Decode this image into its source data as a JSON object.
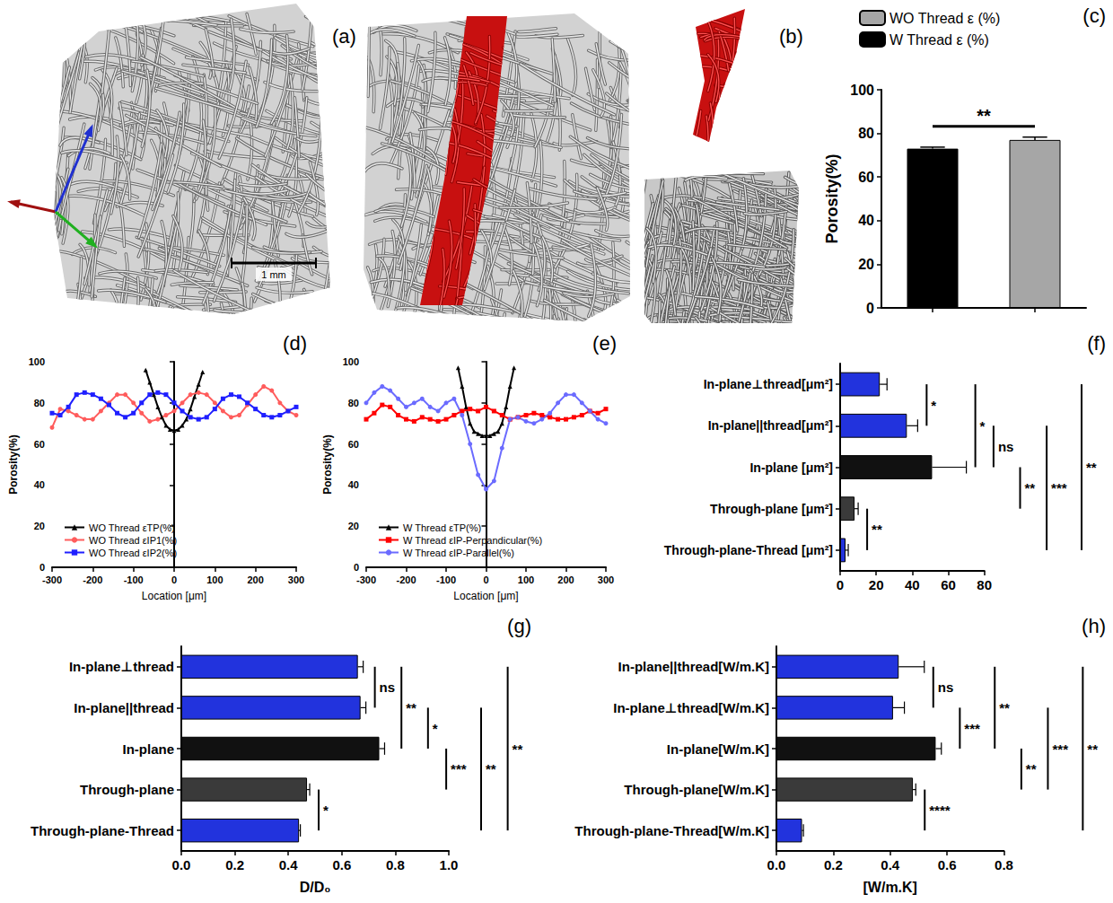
{
  "figures": [
    {
      "panel": "(a)",
      "scale_bar": "1 mm"
    },
    {
      "panel": "(b)"
    }
  ],
  "chart_data": [
    {
      "panel": "(c)",
      "type": "bar",
      "y_label": "Porosity(%)",
      "categories": [
        null,
        null
      ],
      "ylim": [
        0,
        100
      ],
      "yticks": [
        0,
        20,
        40,
        60,
        80,
        100
      ],
      "tick_labels": "y",
      "grid": false,
      "legend": "top",
      "series": [
        {
          "name": "WO Thread ε (%)",
          "color": "#a6a6a6",
          "values": [
            null,
            77
          ],
          "errors": [
            null,
            1.3
          ]
        },
        {
          "name": "W Thread ε (%)",
          "color": "#000000",
          "values": [
            73,
            null
          ],
          "errors": [
            0.7,
            null
          ]
        }
      ],
      "annotations": [
        {
          "text": "**",
          "between": [
            0,
            1
          ]
        }
      ]
    },
    {
      "panel": "(d)",
      "type": "line",
      "x_label": "Location [μm]",
      "y_label": "Porosity(%)",
      "xlim": [
        -300,
        300
      ],
      "xticks": [
        -300,
        -200,
        -100,
        0,
        100,
        200,
        300
      ],
      "ylim": [
        0,
        100
      ],
      "yticks": [
        0,
        20,
        40,
        60,
        80,
        100
      ],
      "grid": false,
      "legend": "lower left",
      "series": [
        {
          "name": "WO Thread εTP(%)",
          "color": "#000000",
          "marker": "triangle",
          "x": [
            -70,
            -60,
            -50,
            -40,
            -30,
            -20,
            -10,
            0,
            10,
            20,
            30,
            40,
            50,
            60,
            70
          ],
          "values": [
            96,
            90,
            84,
            78,
            73,
            69,
            67,
            66.5,
            67,
            69,
            72,
            77,
            83,
            89,
            95
          ]
        },
        {
          "name": "WO Thread εIP1(%)",
          "color": "#ff5c5c",
          "marker": "circle",
          "x": [
            -300,
            -280,
            -260,
            -240,
            -220,
            -200,
            -180,
            -160,
            -140,
            -120,
            -100,
            -80,
            -60,
            -40,
            -20,
            0,
            20,
            40,
            60,
            80,
            100,
            120,
            140,
            160,
            180,
            200,
            220,
            240,
            260,
            280,
            300
          ],
          "values": [
            68,
            77,
            76,
            74,
            72,
            72,
            76,
            80,
            84,
            84,
            80,
            75,
            71,
            72,
            74,
            76,
            80,
            84,
            85,
            84,
            80,
            76,
            73,
            74,
            79,
            84,
            88,
            86,
            80,
            76,
            74
          ]
        },
        {
          "name": "WO Thread εIP2(%)",
          "color": "#1f1fff",
          "marker": "square",
          "x": [
            -300,
            -280,
            -260,
            -240,
            -220,
            -200,
            -180,
            -160,
            -140,
            -120,
            -100,
            -80,
            -60,
            -40,
            -20,
            0,
            20,
            40,
            60,
            80,
            100,
            120,
            140,
            160,
            180,
            200,
            220,
            240,
            260,
            280,
            300
          ],
          "values": [
            75,
            74,
            78,
            84,
            85,
            84,
            82,
            79,
            75,
            73,
            75,
            80,
            84,
            85,
            84,
            80,
            76,
            73,
            72,
            73,
            77,
            82,
            84,
            83,
            80,
            77,
            74,
            73,
            74,
            76,
            78
          ]
        }
      ]
    },
    {
      "panel": "(e)",
      "type": "line",
      "x_label": "Location [μm]",
      "y_label": "Porosity(%)",
      "xlim": [
        -300,
        300
      ],
      "xticks": [
        -300,
        -200,
        -100,
        0,
        100,
        200,
        300
      ],
      "ylim": [
        0,
        100
      ],
      "yticks": [
        0,
        20,
        40,
        60,
        80,
        100
      ],
      "grid": false,
      "legend": "lower left",
      "series": [
        {
          "name": "W Thread εTP(%)",
          "color": "#000000",
          "marker": "triangle",
          "x": [
            -70,
            -60,
            -50,
            -40,
            -30,
            -20,
            -10,
            0,
            10,
            20,
            30,
            40,
            50,
            60,
            70
          ],
          "values": [
            97,
            88,
            78,
            70,
            66,
            65,
            64,
            64,
            64,
            65,
            66,
            70,
            78,
            88,
            97
          ]
        },
        {
          "name": "W Thread εIP-Perpandicular(%)",
          "color": "#ff0000",
          "marker": "square",
          "x": [
            -300,
            -280,
            -260,
            -240,
            -220,
            -200,
            -180,
            -160,
            -140,
            -120,
            -100,
            -80,
            -60,
            -40,
            -20,
            0,
            20,
            40,
            60,
            80,
            100,
            120,
            140,
            160,
            180,
            200,
            220,
            240,
            260,
            280,
            300
          ],
          "values": [
            72,
            75,
            79,
            78,
            74,
            72,
            71,
            73,
            72,
            71,
            72,
            74,
            76,
            77,
            76,
            78,
            76,
            74,
            72,
            73,
            74,
            75,
            74,
            73,
            72,
            72,
            73,
            74,
            76,
            75,
            77
          ]
        },
        {
          "name": "W Thread εIP-Parallel(%)",
          "color": "#6b6bff",
          "marker": "circle",
          "x": [
            -300,
            -280,
            -260,
            -240,
            -220,
            -200,
            -180,
            -160,
            -140,
            -120,
            -100,
            -80,
            -60,
            -40,
            -20,
            0,
            20,
            40,
            60,
            80,
            100,
            120,
            140,
            160,
            180,
            200,
            220,
            240,
            260,
            280,
            300
          ],
          "values": [
            80,
            85,
            88,
            86,
            82,
            78,
            80,
            82,
            78,
            76,
            80,
            82,
            74,
            60,
            45,
            38,
            42,
            58,
            72,
            73,
            71,
            70,
            72,
            75,
            80,
            84,
            84,
            80,
            76,
            72,
            70
          ]
        }
      ]
    },
    {
      "panel": "(f)",
      "type": "bar",
      "orientation": "horizontal",
      "grid": false,
      "categories": [
        "In-plane⊥thread[μm²]",
        "In-plane||thread[μm²]",
        "In-plane [μm²]",
        "Through-plane [μm²]",
        "Through-plane-Thread [μm²]"
      ],
      "values": [
        22,
        37,
        51,
        8,
        3
      ],
      "errors": [
        4,
        6,
        19,
        2,
        1.5
      ],
      "colors": [
        "#2233dd",
        "#2233dd",
        "#111111",
        "#3a3a3a",
        "#2233dd"
      ],
      "xlim": [
        0,
        80
      ],
      "xticks": [
        0,
        20,
        40,
        60,
        80
      ],
      "annotations": [
        {
          "text": "*",
          "between": [
            0,
            1
          ]
        },
        {
          "text": "*",
          "between": [
            0,
            2
          ]
        },
        {
          "text": "ns",
          "between": [
            1,
            2
          ]
        },
        {
          "text": "**",
          "between": [
            2,
            3
          ]
        },
        {
          "text": "***",
          "between": [
            1,
            4
          ]
        },
        {
          "text": "**",
          "between": [
            3,
            4
          ]
        },
        {
          "text": "**",
          "between": [
            0,
            4
          ]
        }
      ]
    },
    {
      "panel": "(g)",
      "type": "bar",
      "orientation": "horizontal",
      "grid": false,
      "x_label": "D/D₀",
      "categories": [
        "In-plane⊥thread",
        "In-plane||thread",
        "In-plane",
        "Through-plane",
        "Through-plane-Thread"
      ],
      "values": [
        0.66,
        0.67,
        0.74,
        0.47,
        0.44
      ],
      "errors": [
        0.02,
        0.02,
        0.02,
        0.01,
        0.005
      ],
      "colors": [
        "#2233dd",
        "#2233dd",
        "#111111",
        "#3a3a3a",
        "#2233dd"
      ],
      "xlim": [
        0,
        1
      ],
      "xticks": [
        {
          "value": 0,
          "label": "0.0"
        },
        0.2,
        0.4,
        0.6,
        0.8,
        {
          "value": 1,
          "label": "1.0"
        }
      ],
      "annotations": [
        {
          "text": "ns",
          "between": [
            0,
            1
          ]
        },
        {
          "text": "**",
          "between": [
            0,
            2
          ]
        },
        {
          "text": "*",
          "between": [
            1,
            2
          ]
        },
        {
          "text": "***",
          "between": [
            2,
            3
          ]
        },
        {
          "text": "**",
          "between": [
            1,
            4
          ]
        },
        {
          "text": "*",
          "between": [
            3,
            4
          ]
        },
        {
          "text": "**",
          "between": [
            0,
            4
          ]
        }
      ]
    },
    {
      "panel": "(h)",
      "type": "bar",
      "orientation": "horizontal",
      "grid": false,
      "x_label": "[W/m.K]",
      "categories": [
        "In-plane||thread[W/m.K]",
        "In-plane⊥thread[W/m.K]",
        "In-plane[W/m.K]",
        "Through-plane[W/m.K]",
        "Through-plane-Thread[W/m.K]"
      ],
      "values": [
        0.43,
        0.41,
        0.56,
        0.48,
        0.09
      ],
      "errors": [
        0.09,
        0.04,
        0.02,
        0.01,
        0.005
      ],
      "colors": [
        "#2233dd",
        "#2233dd",
        "#111111",
        "#3a3a3a",
        "#2233dd"
      ],
      "xlim": [
        0,
        0.8
      ],
      "xticks": [
        {
          "value": 0,
          "label": "0.0"
        },
        0.2,
        0.4,
        0.6,
        0.8
      ],
      "annotations": [
        {
          "text": "ns",
          "between": [
            0,
            1
          ]
        },
        {
          "text": "***",
          "between": [
            1,
            2
          ]
        },
        {
          "text": "**",
          "between": [
            0,
            2
          ]
        },
        {
          "text": "**",
          "between": [
            2,
            3
          ]
        },
        {
          "text": "***",
          "between": [
            1,
            3
          ]
        },
        {
          "text": "****",
          "between": [
            3,
            4
          ]
        },
        {
          "text": "**",
          "between": [
            0,
            4
          ]
        }
      ]
    }
  ]
}
